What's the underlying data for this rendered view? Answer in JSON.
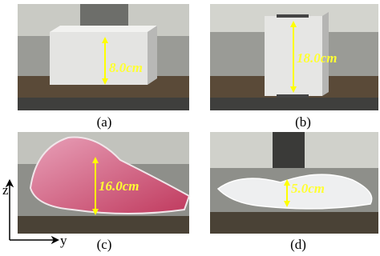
{
  "panels": [
    {
      "label": "(a)",
      "measurement": "8.0cm"
    },
    {
      "label": "(b)",
      "measurement": "18.0cm"
    },
    {
      "label": "(c)",
      "measurement": "16.0cm"
    },
    {
      "label": "(d)",
      "measurement": "5.0cm"
    }
  ],
  "axes": {
    "vertical": "z",
    "horizontal": "y"
  }
}
